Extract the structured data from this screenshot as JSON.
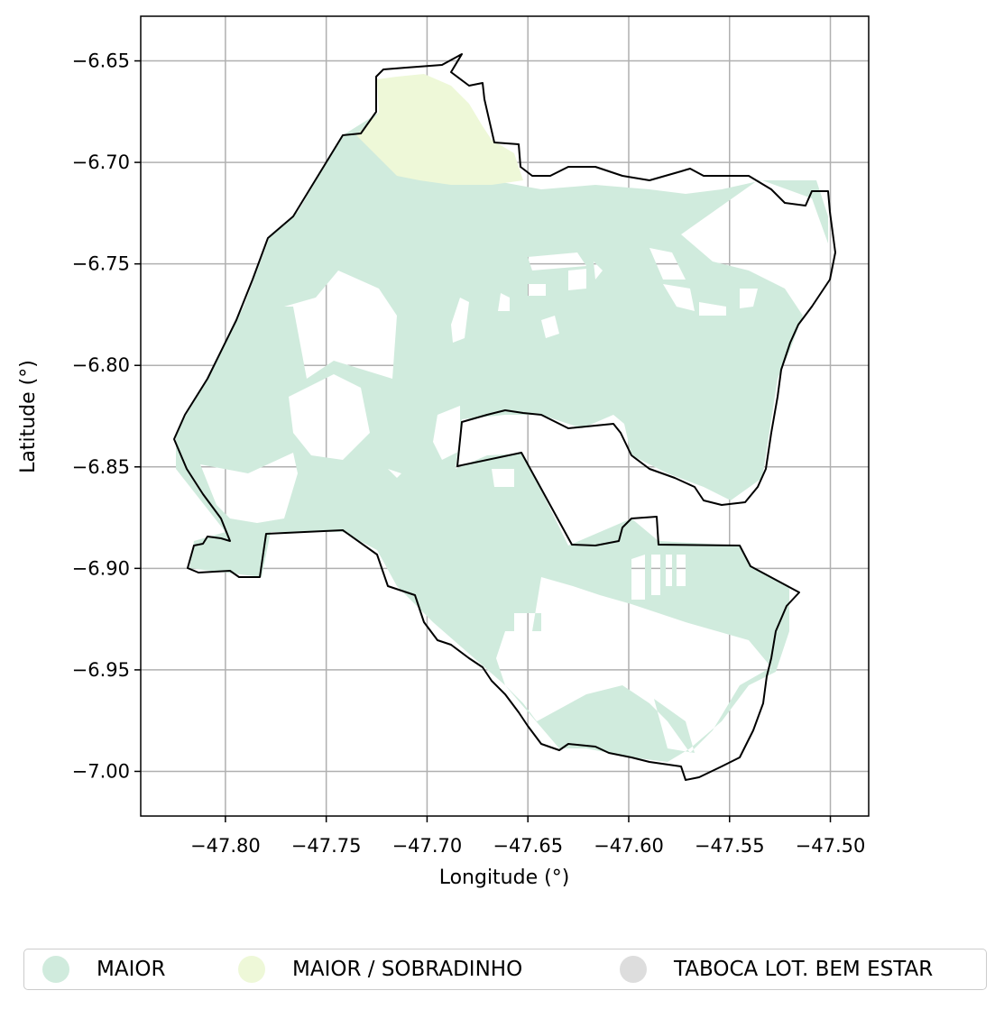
{
  "map": {
    "xlabel": "Longitude (°)",
    "ylabel": "Latitude (°)",
    "xlim": [
      -47.842,
      -47.481
    ],
    "ylim": [
      -7.022,
      -6.628
    ],
    "xticks": [
      -47.8,
      -47.75,
      -47.7,
      -47.65,
      -47.6,
      -47.55,
      -47.5
    ],
    "xtick_labels": [
      "−47.80",
      "−47.75",
      "−47.70",
      "−47.65",
      "−47.60",
      "−47.55",
      "−47.50"
    ],
    "yticks": [
      -6.65,
      -6.7,
      -6.75,
      -6.8,
      -6.85,
      -6.9,
      -6.95,
      -7.0
    ],
    "ytick_labels": [
      "−6.65",
      "−6.70",
      "−6.75",
      "−6.80",
      "−6.85",
      "−6.90",
      "−6.95",
      "−7.00"
    ],
    "grid": true,
    "legend_position": "bottom",
    "categories": [
      {
        "name": "MAIOR",
        "color": "#d0ebdd"
      },
      {
        "name": "MAIOR / SOBRADINHO",
        "color": "#eef8d8"
      },
      {
        "name": "TABOCA LOT. BEM ESTAR",
        "color": "#dddddd"
      }
    ]
  }
}
